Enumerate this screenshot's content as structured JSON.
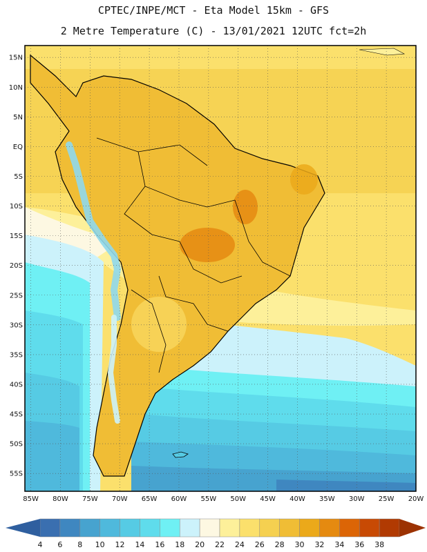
{
  "header": {
    "line1": "CPTEC/INPE/MCT -  Eta Model 15km - GFS",
    "line2": "2 Metre Temperature (C) - 13/01/2021 12UTC fct=2h"
  },
  "map": {
    "region": "South America",
    "lon_range": [
      -86,
      -20
    ],
    "lat_range": [
      -58,
      17
    ],
    "lat_ticks": [
      "15N",
      "10N",
      "5N",
      "EQ",
      "5S",
      "10S",
      "15S",
      "20S",
      "25S",
      "30S",
      "35S",
      "40S",
      "45S",
      "50S",
      "55S"
    ],
    "lon_ticks": [
      "85W",
      "80W",
      "75W",
      "70W",
      "65W",
      "60W",
      "55W",
      "50W",
      "45W",
      "40W",
      "35W",
      "30W",
      "25W",
      "20W"
    ]
  },
  "colorbar": {
    "labels": [
      "4",
      "6",
      "8",
      "10",
      "12",
      "14",
      "16",
      "18",
      "20",
      "22",
      "24",
      "26",
      "28",
      "30",
      "32",
      "34",
      "36",
      "38"
    ],
    "colors": [
      "#3a6fb0",
      "#3f87c0",
      "#47a3cf",
      "#4fb9dc",
      "#56cbe4",
      "#5fdcec",
      "#6ff0f4",
      "#ccf2fb",
      "#fdf8e2",
      "#fdf09a",
      "#fbe06c",
      "#f5d050",
      "#f0bd35",
      "#eba91a",
      "#e58a10",
      "#dc6506",
      "#c84a04",
      "#b13a02"
    ]
  }
}
